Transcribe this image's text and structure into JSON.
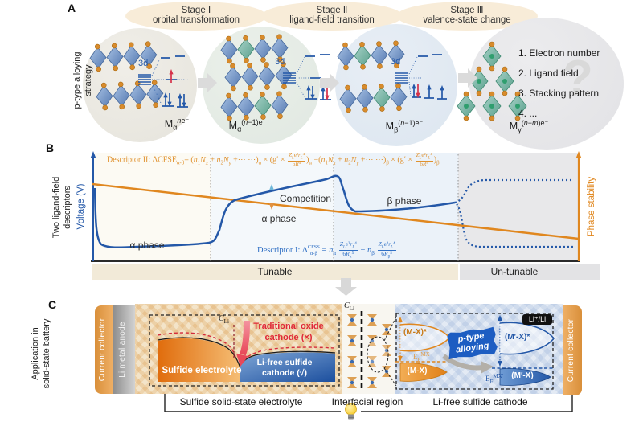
{
  "panel_a": {
    "label": "A",
    "side_label_1": "p-type alloying",
    "side_label_2": "strategy",
    "stages": [
      {
        "num": "Stage Ⅰ",
        "desc": "orbital transformation"
      },
      {
        "num": "Stage Ⅱ",
        "desc": "ligand-field transition"
      },
      {
        "num": "Stage Ⅲ",
        "desc": "valence-state change"
      }
    ],
    "orbital": "3d",
    "states": [
      "M<sub>α</sub><sup><i>n</i>e⁻</sup>",
      "M<sub>α</sub><sup>(<i>n</i>−1)e⁻</sup>",
      "M<sub>β</sub><sup>(<i>n</i>−1)e⁻</sup>",
      "M<sub>γ</sub><sup>(<i>n</i>−<i>m</i>)e⁻</sup>"
    ],
    "factors": [
      "1. Electron number",
      "2. Ligand field",
      "3. Stacking pattern",
      "4. ..."
    ],
    "question_mark": "?"
  },
  "panel_b": {
    "label": "B",
    "side_label_1": "Two ligand-field",
    "side_label_2": "descriptors",
    "axis_left": "Voltage (V)",
    "axis_right": "Phase stability",
    "descriptor2_html": "Descriptor II: ΔCFSE<sub>α-β</sub>= (<i>n</i><sub>1</sub><i>N<sub>x</sub></i> + <i>n</i><sub>2</sub><i>N<sub>y</sub></i> +⋯ ⋯)<sub>α</sub> × (g′ × <span class='fr'><span><i>Z<sub>L</sub></i>e²<i>r<sub>L</sub></i>⁴</span><span>6<i>R</i>⁵</span></span>)<sub>α</sub> −(<i>n</i><sub>1</sub><i>N<sub>x</sub></i> + <i>n</i><sub>2</sub><i>N<sub>y</sub></i> +⋯ ⋯)<sub>β</sub> × (g′ × <span class='fr'><span><i>Z<sub>L</sub></i>e²<i>r<sub>L</sub></i>⁴</span><span>6<i>R</i>⁵</span></span>)<sub>β</sub>",
    "descriptor1_html": "Descriptor I: Δ<span class='ss'><span>CFSS</span><span>α-β</span></span> = <i>n</i><sub>α</sub> <span class='fr'><span><i>Z<sub>L</sub></i>e²<i>r<sub>L</sub></i>⁴</span><span>6<i>R</i><sub>α</sub>⁵</span></span> − <i>n</i><sub>β</sub> <span class='fr'><span><i>Z<sub>L</sub></i>e²<i>r<sub>L</sub></i>⁴</span><span>6<i>R</i><sub>β</sub>⁵</span></span>",
    "competition": "Competition",
    "alpha_phase_1": "α phase",
    "alpha_phase_2": "α phase",
    "beta_phase": "β phase",
    "tunable": "Tunable",
    "untunable": "Un-tunable",
    "colors": {
      "voltage_curve": "#2458a8",
      "stability_line": "#e0871f"
    }
  },
  "panel_c": {
    "label": "C",
    "side_label_1": "Application in",
    "side_label_2": "solid-state battery",
    "collector_left": "Current collector",
    "anode": "Li metal anode",
    "collector_right": "Current collector",
    "c_li_html": "<i>C</i><sub>Li</sub>",
    "traditional_1": "Traditional oxide",
    "traditional_2": "cathode (×)",
    "sulfide_electrolyte": "Sulfide electrolyte",
    "lifree_1": "Li-free sulfide",
    "lifree_2": "cathode (√)",
    "mx_star": "(M-X)*",
    "mx": "(M-X)",
    "ef_mx_html": "E<sub>F</sub><sup>MX</sup>",
    "mpx_star": "(M′-X)*",
    "mpx": "(M′-X)",
    "ef_mpx_html": "E<sub>F</sub><sup>MX′</sup>",
    "ptype_1": "p-type",
    "ptype_2": "alloying",
    "li_li": "Li⁺/Li",
    "bottom_labels": [
      "Sulfide solid-state electrolyte",
      "Interfacial region",
      "Li-free sulfide cathode"
    ]
  }
}
